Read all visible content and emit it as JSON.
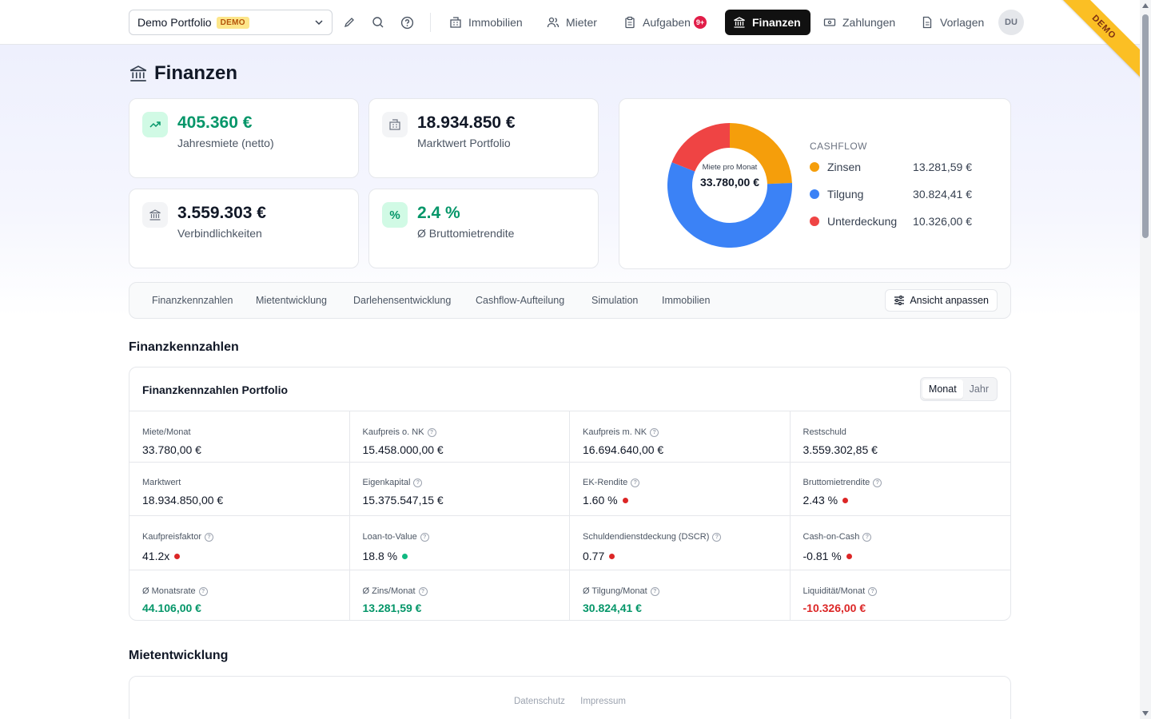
{
  "nav": {
    "portfolio_name": "Demo Portfolio",
    "demo_badge": "DEMO",
    "items": [
      {
        "label": "Immobilien",
        "icon": "building-icon"
      },
      {
        "label": "Mieter",
        "icon": "users-icon"
      },
      {
        "label": "Aufgaben",
        "icon": "clipboard-icon",
        "badge": "9+"
      },
      {
        "label": "Finanzen",
        "icon": "bank-icon",
        "active": true
      },
      {
        "label": "Zahlungen",
        "icon": "payment-icon"
      },
      {
        "label": "Vorlagen",
        "icon": "document-icon"
      }
    ],
    "avatar": "DU",
    "ribbon": "DEMO"
  },
  "page": {
    "title": "Finanzen"
  },
  "kpis": [
    {
      "value": "405.360 €",
      "label": "Jahresmiete (netto)"
    },
    {
      "value": "18.934.850 €",
      "label": "Marktwert Portfolio"
    },
    {
      "value": "3.559.303 €",
      "label": "Verbindlichkeiten"
    },
    {
      "value": "2.4 %",
      "label": "Ø Bruttomietrendite"
    }
  ],
  "cashflow": {
    "title": "CASHFLOW",
    "center_label": "Miete pro Monat",
    "center_value": "33.780,00 €",
    "items": [
      {
        "name": "Zinsen",
        "value": "13.281,59 €",
        "amount": 13281.59,
        "color": "#f59e0b"
      },
      {
        "name": "Tilgung",
        "value": "30.824,41 €",
        "amount": 30824.41,
        "color": "#3b82f6"
      },
      {
        "name": "Unterdeckung",
        "value": "10.326,00 €",
        "amount": 10326.0,
        "color": "#ef4444"
      }
    ]
  },
  "tabs": [
    "Finanzkennzahlen",
    "Mietentwicklung",
    "Darlehensentwicklung",
    "Cashflow-Aufteilung",
    "Simulation",
    "Immobilien"
  ],
  "customize_label": "Ansicht anpassen",
  "section1": "Finanzkennzahlen",
  "panel": {
    "title": "Finanzkennzahlen Portfolio",
    "seg_month": "Monat",
    "seg_year": "Jahr"
  },
  "metrics": [
    [
      {
        "label": "Miete/Monat",
        "value": "33.780,00 €"
      },
      {
        "label": "Kaufpreis o. NK",
        "value": "15.458.000,00 €",
        "info": true
      },
      {
        "label": "Kaufpreis m. NK",
        "value": "16.694.640,00 €",
        "info": true
      },
      {
        "label": "Restschuld",
        "value": "3.559.302,85 €"
      }
    ],
    [
      {
        "label": "Marktwert",
        "value": "18.934.850,00 €"
      },
      {
        "label": "Eigenkapital",
        "value": "15.375.547,15 €",
        "info": true
      },
      {
        "label": "EK-Rendite",
        "value": "1.60 %",
        "info": true,
        "status": "red"
      },
      {
        "label": "Bruttomietrendite",
        "value": "2.43 %",
        "info": true,
        "status": "red"
      }
    ],
    [
      {
        "label": "Kaufpreisfaktor",
        "value": "41.2x",
        "info": true,
        "status": "red"
      },
      {
        "label": "Loan-to-Value",
        "value": "18.8 %",
        "info": true,
        "status": "green"
      },
      {
        "label": "Schuldendienstdeckung (DSCR)",
        "value": "0.77",
        "info": true,
        "status": "red"
      },
      {
        "label": "Cash-on-Cash",
        "value": "-0.81 %",
        "info": true,
        "status": "red"
      }
    ],
    [
      {
        "label": "Ø Monatsrate",
        "value": "44.106,00 €",
        "info": true,
        "tone": "green"
      },
      {
        "label": "Ø Zins/Monat",
        "value": "13.281,59 €",
        "info": true,
        "tone": "green"
      },
      {
        "label": "Ø Tilgung/Monat",
        "value": "30.824,41 €",
        "info": true,
        "tone": "green"
      },
      {
        "label": "Liquidität/Monat",
        "value": "-10.326,00 €",
        "info": true,
        "tone": "red"
      }
    ]
  ],
  "section2": "Mietentwicklung",
  "footer": {
    "privacy": "Datenschutz",
    "imprint": "Impressum"
  },
  "colors": {
    "green": "#059669",
    "red": "#dc2626",
    "status_red": "#dc2626",
    "status_green": "#10b981"
  }
}
